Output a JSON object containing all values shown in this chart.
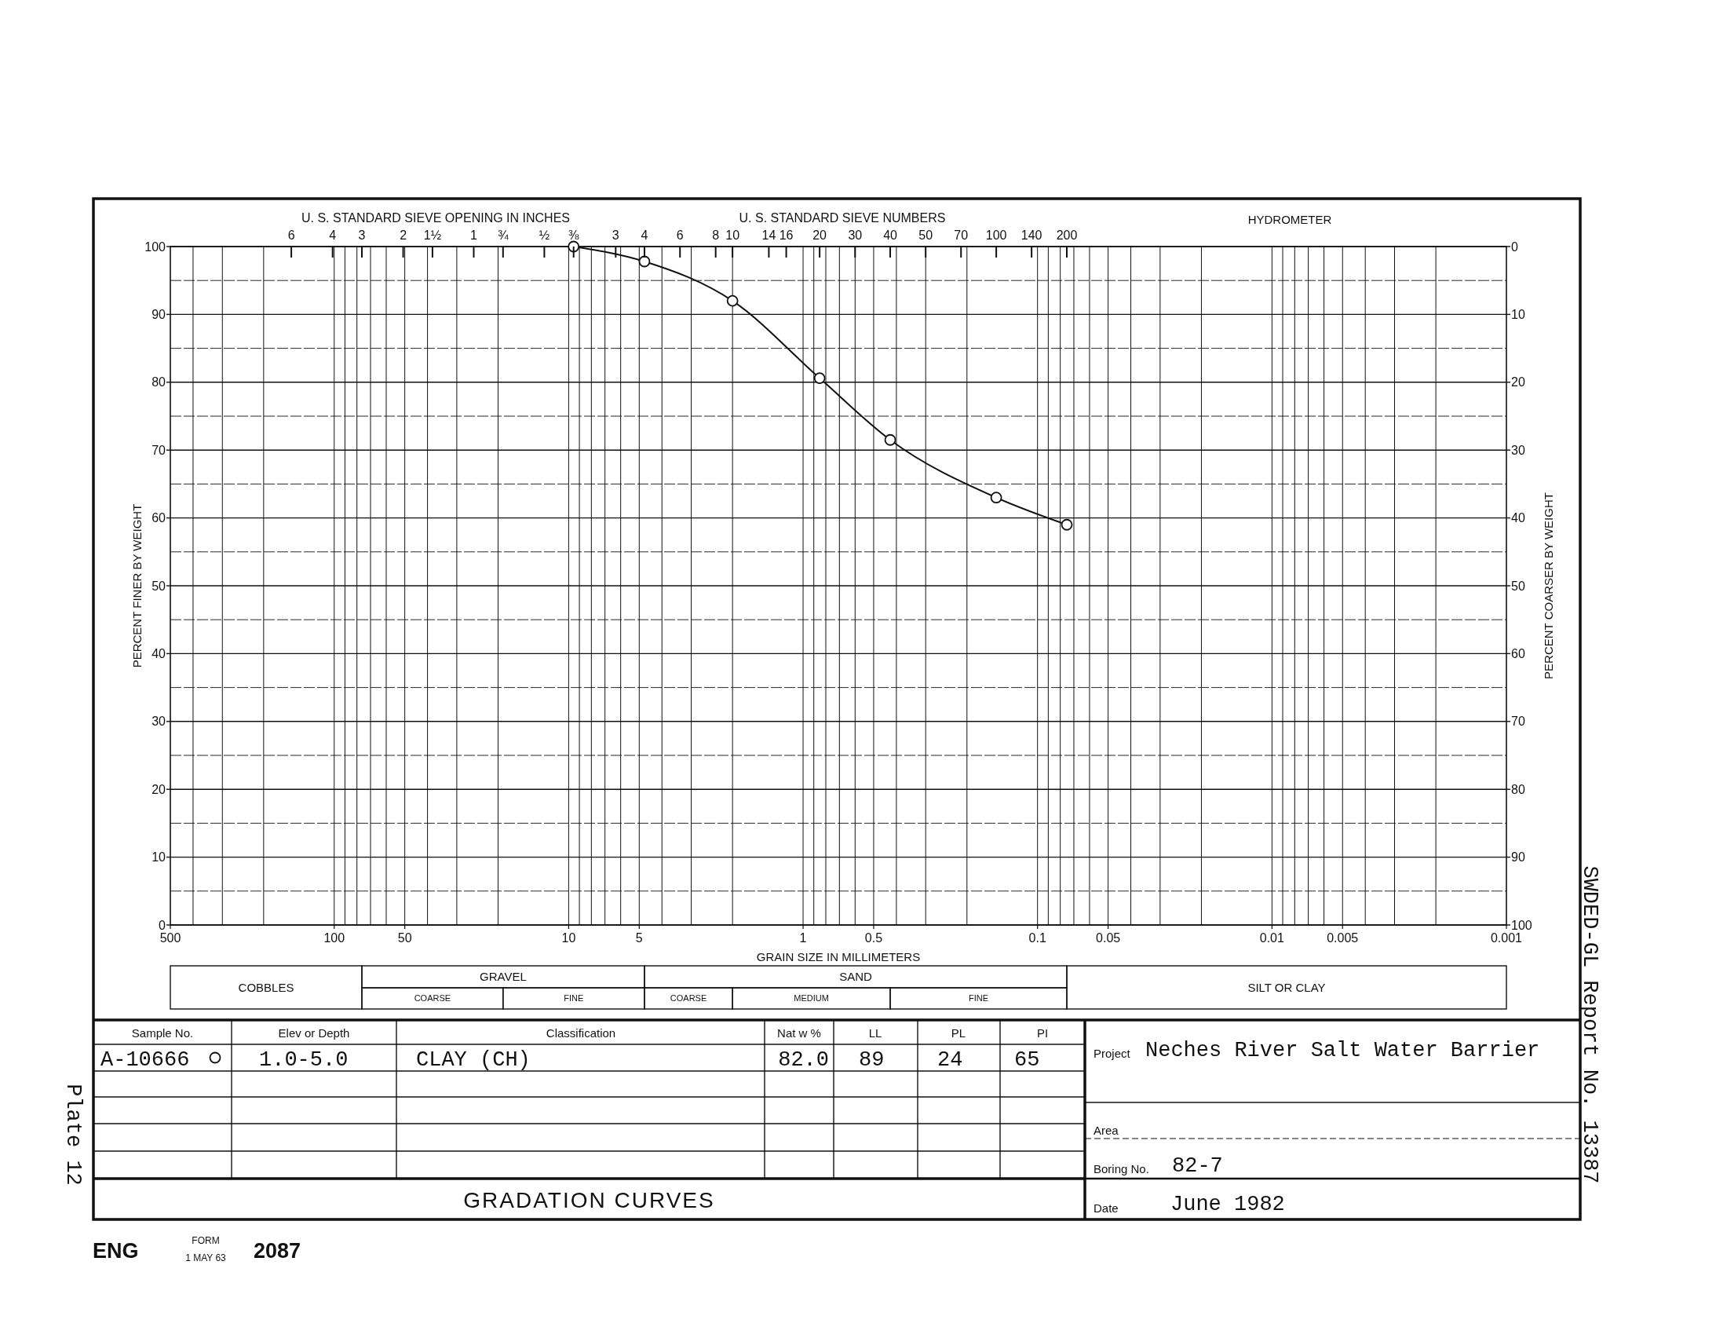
{
  "chart_data": {
    "type": "line",
    "title": "GRADATION CURVES",
    "xlabel": "GRAIN SIZE IN MILLIMETERS",
    "ylabel": "PERCENT FINER BY WEIGHT",
    "y2label": "PERCENT COARSER BY WEIGHT",
    "x": [
      9.525,
      4.75,
      2.0,
      0.85,
      0.425,
      0.15,
      0.075
    ],
    "series": [
      {
        "name": "A-10666",
        "color": "#111111",
        "values": [
          100,
          97.8,
          92,
          80.6,
          71.5,
          63,
          59
        ]
      }
    ],
    "xlim": [
      500,
      0.001
    ],
    "xticks": [
      500,
      100,
      50,
      10,
      5,
      1,
      0.5,
      0.1,
      0.05,
      0.01,
      0.005,
      0.001
    ],
    "ylim": [
      0,
      100
    ],
    "yticks": [
      0,
      10,
      20,
      30,
      40,
      50,
      60,
      70,
      80,
      90,
      100
    ],
    "y2lim": [
      100,
      0
    ],
    "y2ticks": [
      0,
      10,
      20,
      30,
      40,
      50,
      60,
      70,
      80,
      90,
      100
    ],
    "log": "x",
    "grid": true,
    "legend": "bottom",
    "marker": "circle",
    "line_style": "solid",
    "annotations": [
      "U. S. STANDARD SIEVE OPENING IN INCHES",
      "U. S. STANDARD SIEVE NUMBERS",
      "HYDROMETER",
      "6",
      "4",
      "3",
      "2",
      "1½",
      "1",
      "¾",
      "½",
      "⅜",
      "3",
      "4",
      "6",
      "8",
      "10",
      "14",
      "16",
      "20",
      "30",
      "40",
      "50",
      "70",
      "100",
      "140",
      "200",
      "COBBLES",
      "GRAVEL",
      "COARSE",
      "FINE",
      "SAND",
      "COARSE",
      "MEDIUM",
      "FINE",
      "SILT OR CLAY",
      "Sample No.",
      "Elev or Depth",
      "Classification",
      "Nat w %",
      "LL",
      "PL",
      "PI",
      "1.0-5.0",
      "CLAY (CH)",
      "82.0",
      "89",
      "24",
      "65",
      "Project",
      "Neches River Salt Water Barrier",
      "Area",
      "Boring No.",
      "82-7",
      "Date",
      "June 1982",
      "ENG",
      "FORM",
      "1 MAY 63",
      "2087",
      "Plate 12",
      "SWDED-GL Report No. 13387"
    ]
  }
}
